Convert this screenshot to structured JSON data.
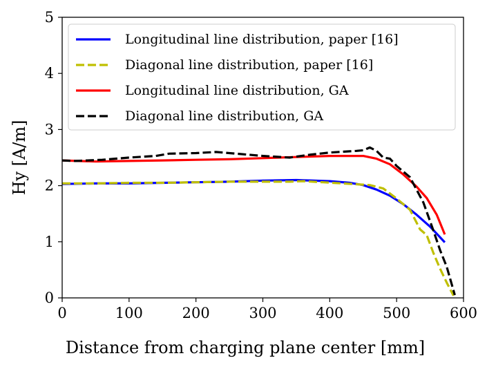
{
  "chart_data": {
    "type": "line",
    "title": "",
    "xlabel": "Distance from charging plane center [mm]",
    "ylabel": "Hy [A/m]",
    "xlim": [
      0,
      600
    ],
    "ylim": [
      0,
      5
    ],
    "xticks": [
      "0",
      "100",
      "200",
      "300",
      "400",
      "500",
      "600"
    ],
    "yticks": [
      "0",
      "1",
      "2",
      "3",
      "4",
      "5"
    ],
    "grid": false,
    "legend_position": "top-left",
    "series": [
      {
        "name": "Longitudinal line distribution, paper [16]",
        "color": "#0000ff",
        "dash": "solid",
        "points": [
          [
            0,
            2.03
          ],
          [
            50,
            2.04
          ],
          [
            100,
            2.04
          ],
          [
            150,
            2.05
          ],
          [
            200,
            2.06
          ],
          [
            250,
            2.07
          ],
          [
            300,
            2.09
          ],
          [
            350,
            2.1
          ],
          [
            400,
            2.08
          ],
          [
            430,
            2.05
          ],
          [
            450,
            2.01
          ],
          [
            470,
            1.93
          ],
          [
            490,
            1.82
          ],
          [
            510,
            1.67
          ],
          [
            530,
            1.48
          ],
          [
            550,
            1.27
          ],
          [
            572,
            0.99
          ]
        ]
      },
      {
        "name": "Diagonal line distribution, paper [16]",
        "color": "#bfbf00",
        "dash": "dashed",
        "points": [
          [
            0,
            2.04
          ],
          [
            50,
            2.04
          ],
          [
            100,
            2.05
          ],
          [
            150,
            2.05
          ],
          [
            200,
            2.06
          ],
          [
            250,
            2.07
          ],
          [
            300,
            2.07
          ],
          [
            340,
            2.07
          ],
          [
            360,
            2.08
          ],
          [
            390,
            2.06
          ],
          [
            420,
            2.04
          ],
          [
            460,
            2.01
          ],
          [
            480,
            1.95
          ],
          [
            500,
            1.77
          ],
          [
            520,
            1.57
          ],
          [
            535,
            1.22
          ],
          [
            545,
            1.12
          ],
          [
            555,
            0.8
          ],
          [
            565,
            0.52
          ],
          [
            575,
            0.27
          ],
          [
            585,
            0.04
          ]
        ]
      },
      {
        "name": "Longitudinal line distribution, GA",
        "color": "#ff0000",
        "dash": "solid",
        "points": [
          [
            0,
            2.45
          ],
          [
            50,
            2.43
          ],
          [
            100,
            2.44
          ],
          [
            150,
            2.45
          ],
          [
            200,
            2.46
          ],
          [
            250,
            2.47
          ],
          [
            300,
            2.49
          ],
          [
            350,
            2.51
          ],
          [
            400,
            2.53
          ],
          [
            450,
            2.53
          ],
          [
            470,
            2.48
          ],
          [
            490,
            2.38
          ],
          [
            510,
            2.2
          ],
          [
            530,
            1.98
          ],
          [
            545,
            1.78
          ],
          [
            560,
            1.48
          ],
          [
            572,
            1.13
          ]
        ]
      },
      {
        "name": "Diagonal line distribution, GA",
        "color": "#000000",
        "dash": "dashed",
        "points": [
          [
            0,
            2.45
          ],
          [
            20,
            2.44
          ],
          [
            60,
            2.46
          ],
          [
            100,
            2.5
          ],
          [
            140,
            2.53
          ],
          [
            160,
            2.57
          ],
          [
            200,
            2.58
          ],
          [
            230,
            2.6
          ],
          [
            260,
            2.57
          ],
          [
            300,
            2.53
          ],
          [
            340,
            2.5
          ],
          [
            370,
            2.55
          ],
          [
            400,
            2.59
          ],
          [
            440,
            2.62
          ],
          [
            450,
            2.63
          ],
          [
            460,
            2.68
          ],
          [
            470,
            2.62
          ],
          [
            480,
            2.5
          ],
          [
            490,
            2.48
          ],
          [
            500,
            2.35
          ],
          [
            520,
            2.15
          ],
          [
            540,
            1.7
          ],
          [
            555,
            1.2
          ],
          [
            565,
            0.85
          ],
          [
            575,
            0.55
          ],
          [
            587,
            0.05
          ]
        ]
      }
    ]
  }
}
